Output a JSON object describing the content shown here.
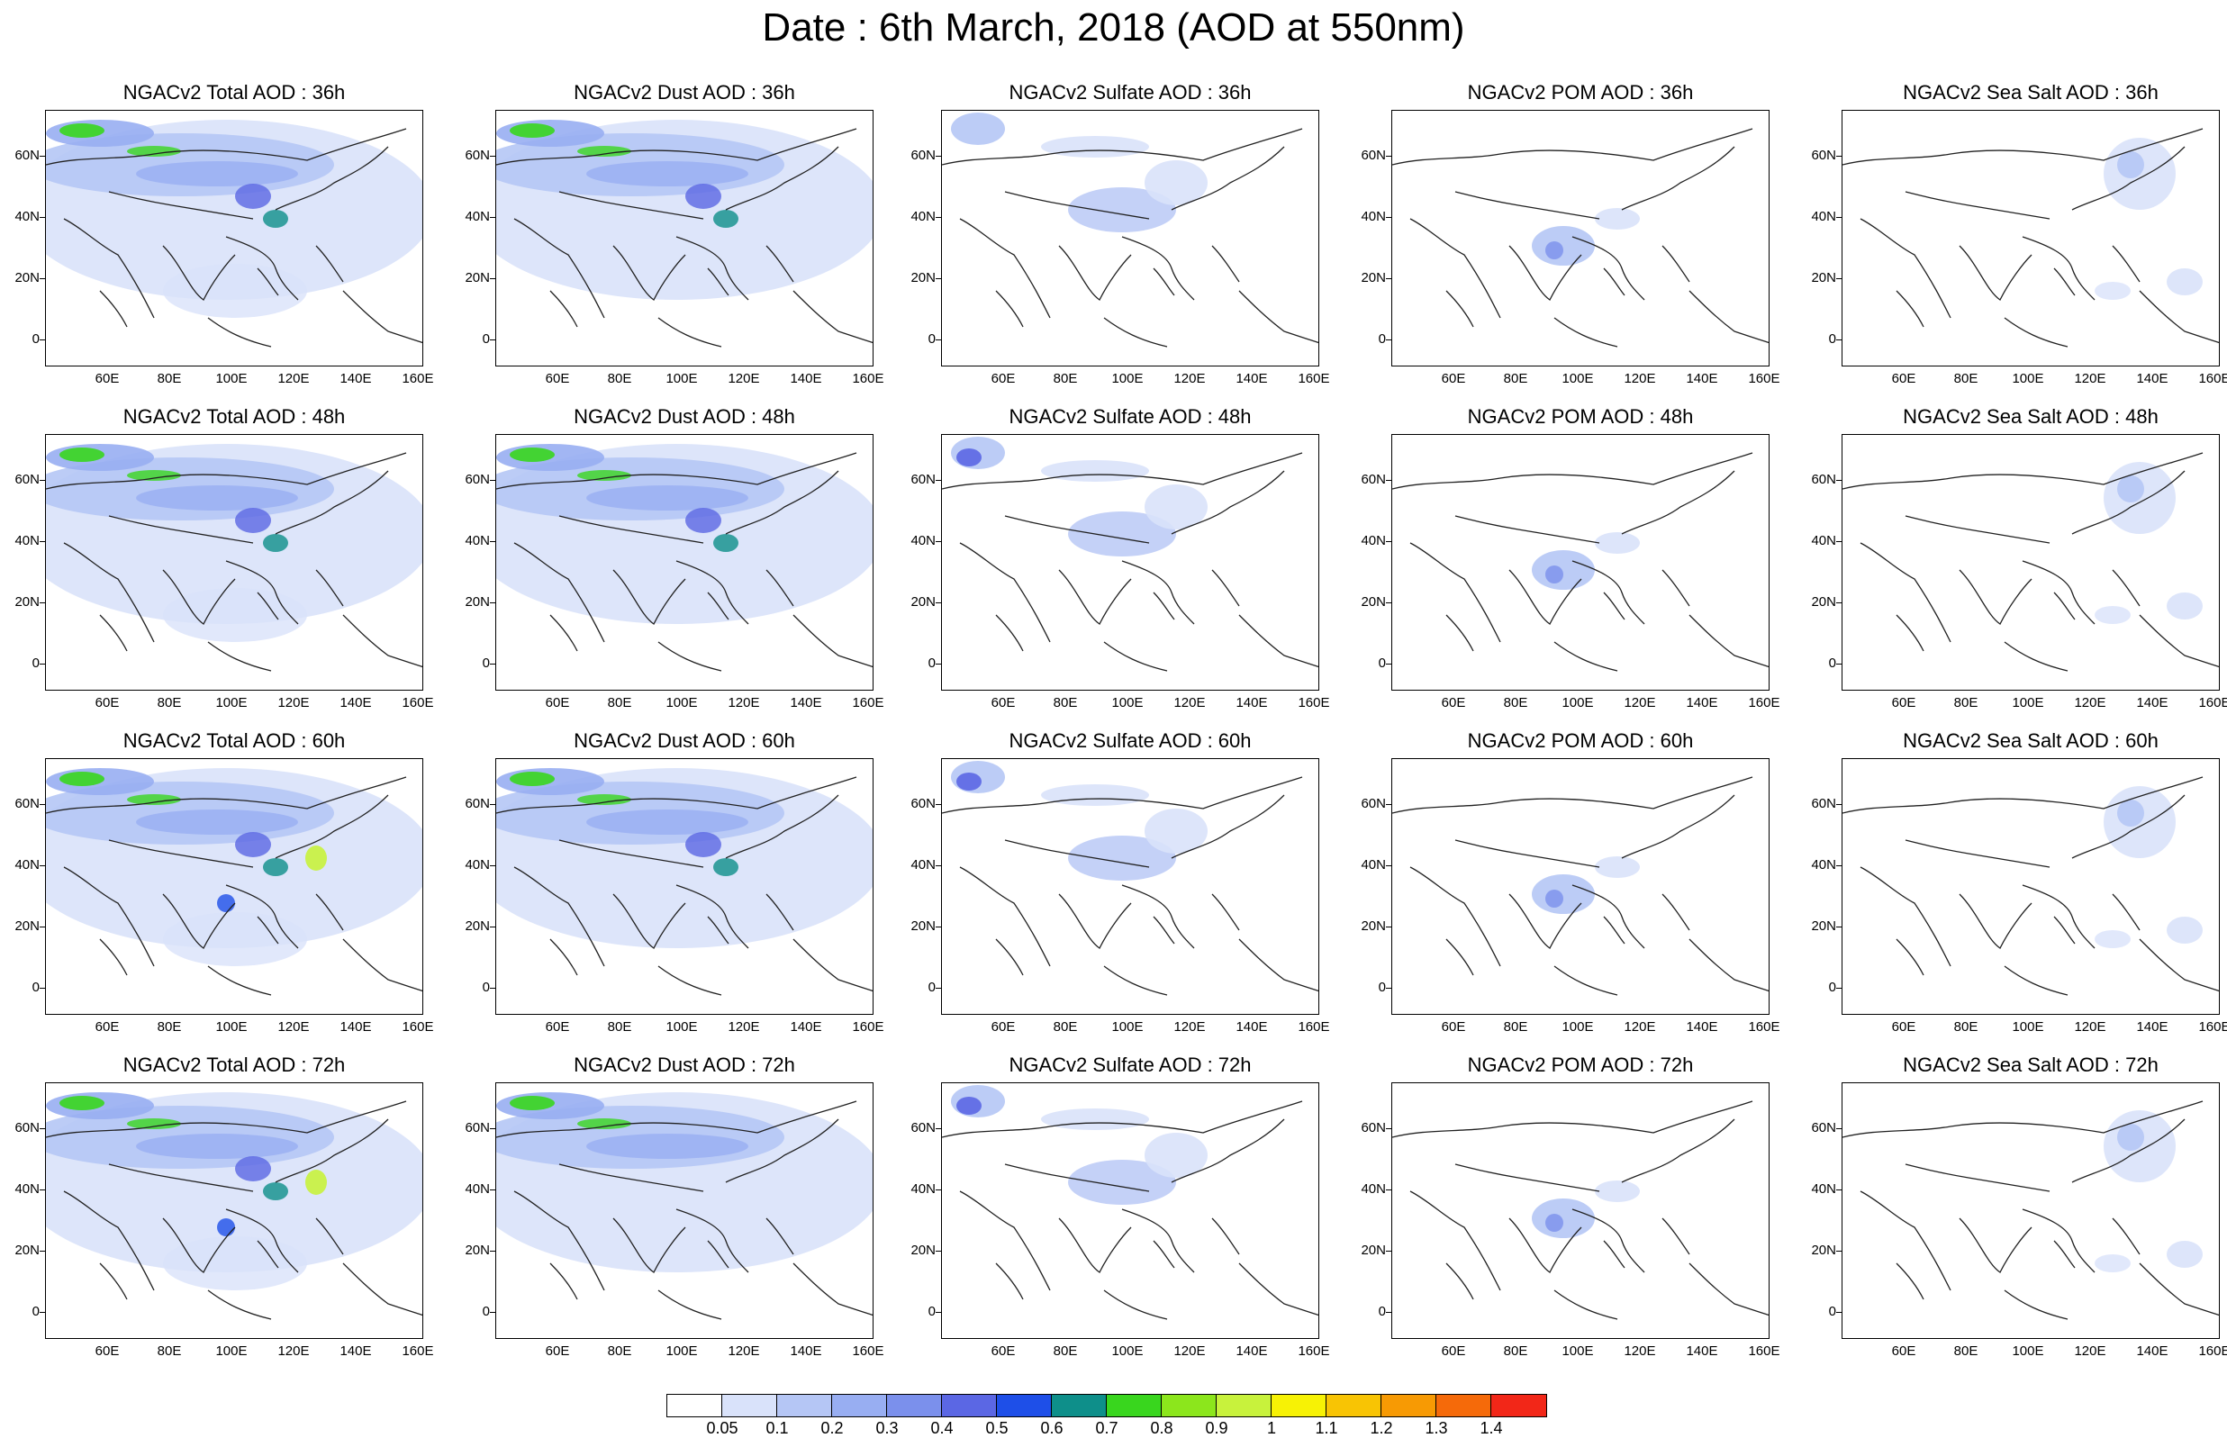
{
  "title": "Date : 6th March, 2018 (AOD at 550nm)",
  "panel_titles": [
    [
      "NGACv2 Total AOD : 36h",
      "NGACv2 Dust AOD : 36h",
      "NGACv2 Sulfate AOD : 36h",
      "NGACv2 POM AOD : 36h",
      "NGACv2 Sea Salt AOD : 36h"
    ],
    [
      "NGACv2 Total AOD : 48h",
      "NGACv2 Dust AOD : 48h",
      "NGACv2 Sulfate AOD : 48h",
      "NGACv2 POM AOD : 48h",
      "NGACv2 Sea Salt AOD : 48h"
    ],
    [
      "NGACv2 Total AOD : 60h",
      "NGACv2 Dust AOD : 60h",
      "NGACv2 Sulfate AOD : 60h",
      "NGACv2 POM AOD : 60h",
      "NGACv2 Sea Salt AOD : 60h"
    ],
    [
      "NGACv2 Total AOD : 72h",
      "NGACv2 Dust AOD : 72h",
      "NGACv2 Sulfate AOD : 72h",
      "NGACv2 POM AOD : 72h",
      "NGACv2 Sea Salt  AOD : 72h"
    ]
  ],
  "lat_labels": [
    "60N",
    "40N",
    "20N",
    "0"
  ],
  "lon_labels": [
    "60E",
    "80E",
    "100E",
    "120E",
    "140E",
    "160E"
  ],
  "colorbar": {
    "labels": [
      "0.05",
      "0.1",
      "0.2",
      "0.3",
      "0.4",
      "0.5",
      "0.6",
      "0.7",
      "0.8",
      "0.9",
      "1",
      "1.1",
      "1.2",
      "1.3",
      "1.4"
    ],
    "colors": [
      "#ffffff",
      "#d9e2fa",
      "#b5c6f5",
      "#98aef2",
      "#7b90ec",
      "#5b67e4",
      "#1e4fe8",
      "#0e8f8a",
      "#39d61e",
      "#8ce61c",
      "#c8f23c",
      "#f7f205",
      "#f8c404",
      "#f79a04",
      "#f56a0a",
      "#f22718"
    ]
  },
  "intensity_by_species": {
    "Total": [
      3,
      3,
      4,
      4
    ],
    "Dust": [
      3,
      3,
      3,
      2
    ],
    "Sulfate": [
      1,
      2,
      2,
      2
    ],
    "POM": [
      1,
      1,
      1,
      1
    ],
    "Sea Salt": [
      1,
      1,
      1,
      1
    ]
  }
}
